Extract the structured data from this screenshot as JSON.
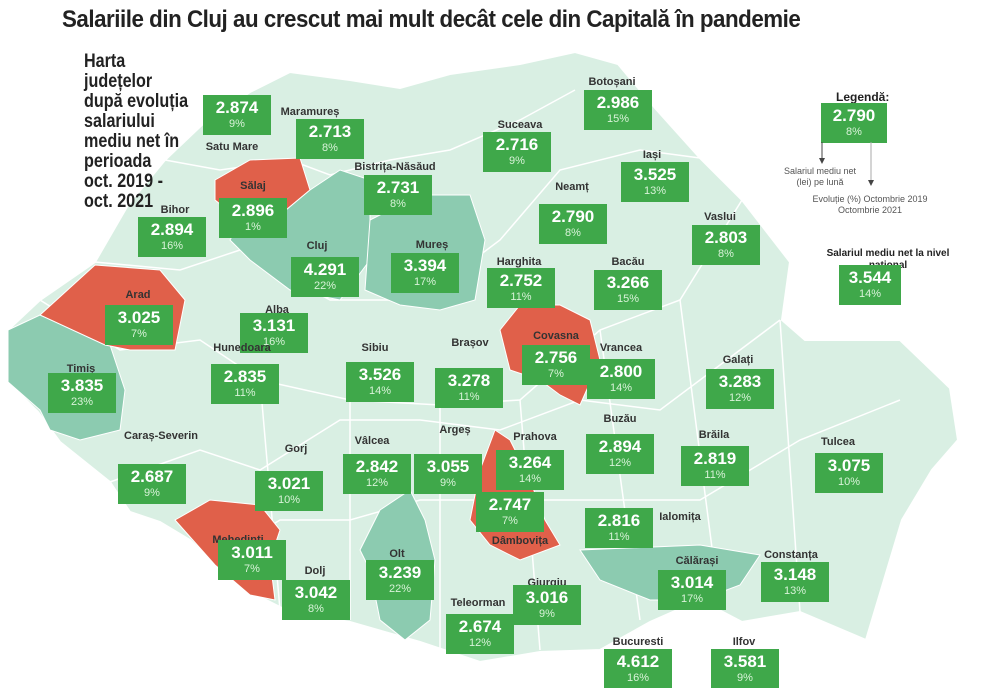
{
  "title": "Salariile din Cluj au crescut mai mult decât cele din Capitală în pandemie",
  "subtitle": "Harta județelor\ndupă evoluția\nsalariului\nmediu net în\nperioada\noct. 2019 -\noct. 2021",
  "colors": {
    "base": "#d9efe3",
    "higher_growth": "#8ccbb0",
    "low_growth": "#e0604a",
    "box": "#3fa84a"
  },
  "legend": {
    "title": "Legendă:",
    "sample_value": "2.790",
    "sample_change": "8%",
    "value_note": "Salariul mediu net (lei) pe lună",
    "change_note": "Evoluție (%) Octombrie 2019 Octombrie 2021"
  },
  "national": {
    "title": "Salariul mediu net la nivel national",
    "value": "3.544",
    "change": "14%"
  },
  "counties": [
    {
      "name": "Satu Mare",
      "value": "2.874",
      "change": "9%",
      "group": "base"
    },
    {
      "name": "Maramureș",
      "value": "2.713",
      "change": "8%",
      "group": "base"
    },
    {
      "name": "Bistrița-Năsăud",
      "value": "2.731",
      "change": "8%",
      "group": "base"
    },
    {
      "name": "Botoșani",
      "value": "2.986",
      "change": "15%",
      "group": "base"
    },
    {
      "name": "Suceava",
      "value": "2.716",
      "change": "9%",
      "group": "base"
    },
    {
      "name": "Iași",
      "value": "3.525",
      "change": "13%",
      "group": "base"
    },
    {
      "name": "Neamț",
      "value": "2.790",
      "change": "8%",
      "group": "base"
    },
    {
      "name": "Vaslui",
      "value": "2.803",
      "change": "8%",
      "group": "base"
    },
    {
      "name": "Bacău",
      "value": "3.266",
      "change": "15%",
      "group": "base"
    },
    {
      "name": "Harghita",
      "value": "2.752",
      "change": "11%",
      "group": "base"
    },
    {
      "name": "Mureș",
      "value": "3.394",
      "change": "17%",
      "group": "higher_growth"
    },
    {
      "name": "Sălaj",
      "value": "2.896",
      "change": "1%",
      "group": "low_growth"
    },
    {
      "name": "Cluj",
      "value": "4.291",
      "change": "22%",
      "group": "higher_growth"
    },
    {
      "name": "Bihor",
      "value": "2.894",
      "change": "16%",
      "group": "base"
    },
    {
      "name": "Arad",
      "value": "3.025",
      "change": "7%",
      "group": "low_growth"
    },
    {
      "name": "Alba",
      "value": "3.131",
      "change": "16%",
      "group": "base"
    },
    {
      "name": "Hunedoara",
      "value": "2.835",
      "change": "11%",
      "group": "base"
    },
    {
      "name": "Timiș",
      "value": "3.835",
      "change": "23%",
      "group": "higher_growth"
    },
    {
      "name": "Sibiu",
      "value": "3.526",
      "change": "14%",
      "group": "base"
    },
    {
      "name": "Brașov",
      "value": "3.278",
      "change": "11%",
      "group": "base"
    },
    {
      "name": "Covasna",
      "value": "2.756",
      "change": "7%",
      "group": "low_growth"
    },
    {
      "name": "Vrancea",
      "value": "2.800",
      "change": "14%",
      "group": "base"
    },
    {
      "name": "Galați",
      "value": "3.283",
      "change": "12%",
      "group": "base"
    },
    {
      "name": "Caraș-Severin",
      "value": "2.687",
      "change": "9%",
      "group": "base"
    },
    {
      "name": "Gorj",
      "value": "3.021",
      "change": "10%",
      "group": "base"
    },
    {
      "name": "Vâlcea",
      "value": "2.842",
      "change": "12%",
      "group": "base"
    },
    {
      "name": "Argeș",
      "value": "3.055",
      "change": "9%",
      "group": "base"
    },
    {
      "name": "Prahova",
      "value": "3.264",
      "change": "14%",
      "group": "base"
    },
    {
      "name": "Buzău",
      "value": "2.894",
      "change": "12%",
      "group": "base"
    },
    {
      "name": "Brăila",
      "value": "2.819",
      "change": "11%",
      "group": "base"
    },
    {
      "name": "Tulcea",
      "value": "3.075",
      "change": "10%",
      "group": "base"
    },
    {
      "name": "Mehedinți",
      "value": "3.011",
      "change": "7%",
      "group": "low_growth"
    },
    {
      "name": "Dâmbovița",
      "value": "2.747",
      "change": "7%",
      "group": "low_growth"
    },
    {
      "name": "Ialomița",
      "value": "2.816",
      "change": "11%",
      "group": "base"
    },
    {
      "name": "Olt",
      "value": "3.239",
      "change": "22%",
      "group": "higher_growth"
    },
    {
      "name": "Dolj",
      "value": "3.042",
      "change": "8%",
      "group": "base"
    },
    {
      "name": "Giurgiu",
      "value": "3.016",
      "change": "9%",
      "group": "base"
    },
    {
      "name": "Călărași",
      "value": "3.014",
      "change": "17%",
      "group": "higher_growth"
    },
    {
      "name": "Constanța",
      "value": "3.148",
      "change": "13%",
      "group": "base"
    },
    {
      "name": "Teleorman",
      "value": "2.674",
      "change": "12%",
      "group": "base"
    },
    {
      "name": "Bucuresti",
      "value": "4.612",
      "change": "16%",
      "group": "base"
    },
    {
      "name": "Ilfov",
      "value": "3.581",
      "change": "9%",
      "group": "base"
    }
  ]
}
